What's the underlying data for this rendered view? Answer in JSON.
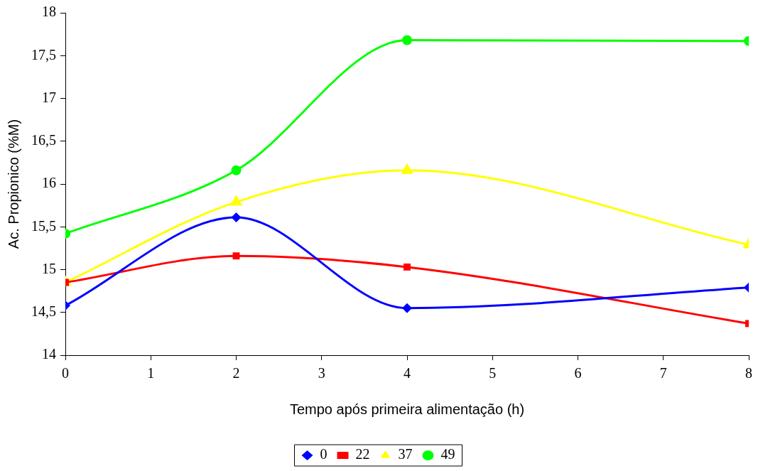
{
  "chart_data": {
    "type": "line",
    "xlabel": "Tempo após primeira alimentação (h)",
    "ylabel": "Ac. Propionico (%M)",
    "x": [
      0,
      2,
      4,
      8
    ],
    "series": [
      {
        "name": "0",
        "color": "#0000ff",
        "marker": "diamond",
        "values": [
          14.58,
          15.61,
          14.55,
          14.79
        ]
      },
      {
        "name": "22",
        "color": "#ff0000",
        "marker": "square",
        "values": [
          14.85,
          15.16,
          15.03,
          14.37
        ]
      },
      {
        "name": "37",
        "color": "#ffff00",
        "marker": "triangle",
        "values": [
          14.85,
          15.79,
          16.16,
          15.29
        ]
      },
      {
        "name": "49",
        "color": "#00ff00",
        "marker": "circle",
        "values": [
          15.42,
          16.16,
          17.68,
          17.67
        ]
      }
    ],
    "xlim": [
      0,
      8
    ],
    "xticks": [
      0,
      1,
      2,
      3,
      4,
      5,
      6,
      7,
      8
    ],
    "ylim": [
      14,
      18
    ],
    "yticks": [
      14,
      {
        "value": 14.5,
        "label": "14,5"
      },
      15,
      {
        "value": 15.5,
        "label": "15,5"
      },
      16,
      {
        "value": 16.5,
        "label": "16,5"
      },
      17,
      {
        "value": 17.5,
        "label": "17,5"
      },
      18
    ],
    "grid": false,
    "legend": "bottom",
    "line_style": "solid"
  }
}
